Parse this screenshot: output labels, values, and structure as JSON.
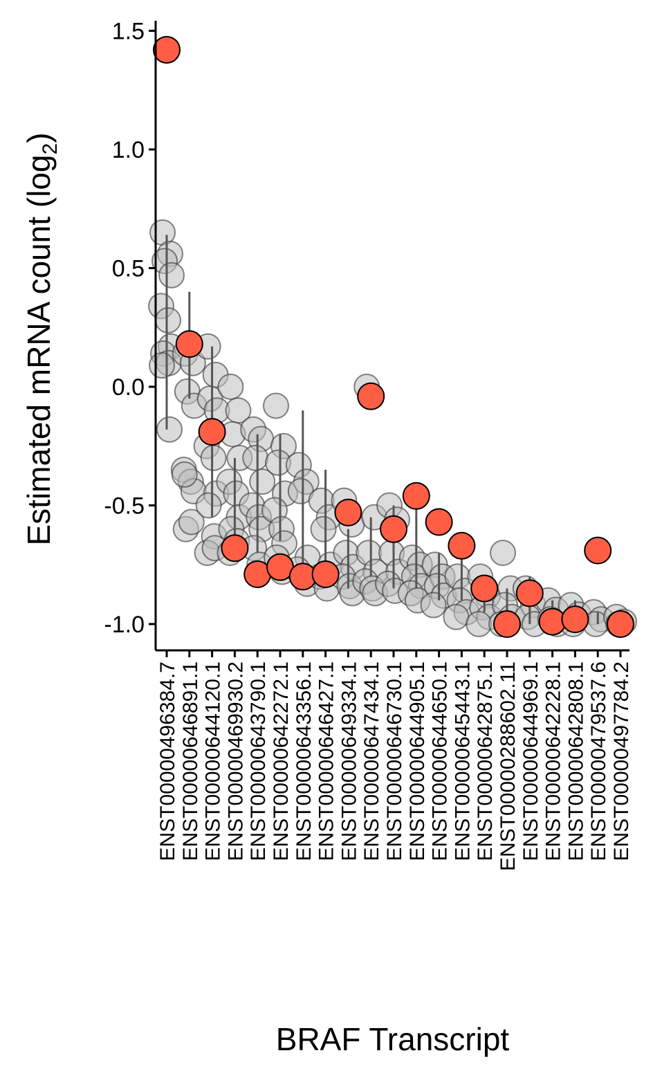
{
  "chart_data": {
    "type": "scatter",
    "title": "",
    "xlabel": "BRAF Transcript",
    "ylabel_main": "Estimated mRNA count (log",
    "ylabel_sub": "2",
    "ylabel_close": ")",
    "ylim": [
      -1.1,
      1.55
    ],
    "yticks": [
      1.5,
      1.0,
      0.5,
      0.0,
      -0.5,
      -1.0
    ],
    "ytick_labels": [
      "1.5",
      "1.0",
      "0.5",
      "0.0",
      "-0.5",
      "-1.0"
    ],
    "grid": false,
    "legend": "none",
    "categories": [
      "ENST00000496384.7",
      "ENST00000646891.1",
      "ENST00000644120.1",
      "ENST00000469930.2",
      "ENST00000643790.1",
      "ENST00000642272.1",
      "ENST00000643356.1",
      "ENST00000646427.1",
      "ENST00000649334.1",
      "ENST00000647434.1",
      "ENST00000646730.1",
      "ENST00000644905.1",
      "ENST00000644650.1",
      "ENST00000645443.1",
      "ENST00000642875.1",
      "ENST00000288602.11",
      "ENST00000644969.1",
      "ENST00000642228.1",
      "ENST00000642808.1",
      "ENST00000479537.6",
      "ENST00000497784.2"
    ],
    "colors": {
      "highlight_fill": "#FF5E45",
      "highlight_edge": "#000000",
      "background_fill": "#BDBDBD",
      "background_edge": "#333333",
      "errorbar": "#555555"
    },
    "highlight_series": [
      1.42,
      0.18,
      -0.19,
      -0.68,
      -0.79,
      -0.76,
      -0.8,
      -0.79,
      -0.53,
      -0.04,
      -0.6,
      -0.46,
      -0.57,
      -0.67,
      -0.85,
      -1.0,
      -0.87,
      -0.99,
      -0.98,
      -0.69,
      -1.0
    ],
    "errorbars": [
      {
        "category": 0,
        "low": -0.18,
        "high": 0.64
      },
      {
        "category": 1,
        "low": -0.05,
        "high": 0.4
      },
      {
        "category": 2,
        "low": -0.55,
        "high": 0.17
      },
      {
        "category": 3,
        "low": -0.7,
        "high": -0.3
      },
      {
        "category": 4,
        "low": -0.7,
        "high": -0.2
      },
      {
        "category": 5,
        "low": -0.65,
        "high": -0.2
      },
      {
        "category": 6,
        "low": -0.75,
        "high": -0.1
      },
      {
        "category": 7,
        "low": -0.8,
        "high": -0.35
      },
      {
        "category": 8,
        "low": -0.85,
        "high": -0.6
      },
      {
        "category": 9,
        "low": -0.8,
        "high": -0.55
      },
      {
        "category": 10,
        "low": -0.85,
        "high": -0.5
      },
      {
        "category": 11,
        "low": -0.85,
        "high": -0.45
      },
      {
        "category": 12,
        "low": -0.9,
        "high": -0.7
      },
      {
        "category": 13,
        "low": -0.9,
        "high": -0.7
      },
      {
        "category": 14,
        "low": -0.95,
        "high": -0.8
      },
      {
        "category": 15,
        "low": -1.0,
        "high": -0.85
      },
      {
        "category": 16,
        "low": -1.0,
        "high": -0.8
      },
      {
        "category": 17,
        "low": -1.0,
        "high": -0.9
      },
      {
        "category": 18,
        "low": -1.0,
        "high": -0.9
      },
      {
        "category": 19,
        "low": -1.0,
        "high": -0.95
      },
      {
        "category": 20,
        "low": -1.0,
        "high": -0.97
      }
    ],
    "background_points": [
      {
        "category": 0,
        "values": [
          0.65,
          0.56,
          0.53,
          0.47,
          0.34,
          0.28,
          0.17,
          0.14,
          0.1,
          0.09,
          -0.18
        ]
      },
      {
        "category": 1,
        "values": [
          0.14,
          0.1,
          -0.02,
          -0.08,
          -0.35,
          -0.4,
          -0.44,
          -0.6,
          -0.57,
          -0.37
        ]
      },
      {
        "category": 2,
        "values": [
          0.17,
          0.05,
          -0.05,
          -0.1,
          -0.25,
          -0.3,
          -0.45,
          -0.5,
          -0.63,
          -0.7,
          -0.68
        ]
      },
      {
        "category": 3,
        "values": [
          0.0,
          -0.1,
          -0.2,
          -0.3,
          -0.4,
          -0.45,
          -0.55,
          -0.6,
          -0.65,
          -0.7
        ]
      },
      {
        "category": 4,
        "values": [
          -0.18,
          -0.22,
          -0.3,
          -0.4,
          -0.5,
          -0.55,
          -0.6,
          -0.68,
          -0.75
        ]
      },
      {
        "category": 5,
        "values": [
          -0.08,
          -0.25,
          -0.32,
          -0.45,
          -0.52,
          -0.6,
          -0.66,
          -0.72,
          -0.78
        ]
      },
      {
        "category": 6,
        "values": [
          -0.33,
          -0.4,
          -0.44,
          -0.72,
          -0.77,
          -0.8,
          -0.83
        ]
      },
      {
        "category": 7,
        "values": [
          -0.48,
          -0.55,
          -0.6,
          -0.75,
          -0.8,
          -0.85
        ]
      },
      {
        "category": 8,
        "values": [
          -0.48,
          -0.58,
          -0.7,
          -0.76,
          -0.8,
          -0.84,
          -0.87
        ]
      },
      {
        "category": 9,
        "values": [
          0.0,
          -0.55,
          -0.7,
          -0.78,
          -0.82,
          -0.85,
          -0.87
        ]
      },
      {
        "category": 10,
        "values": [
          -0.5,
          -0.56,
          -0.7,
          -0.78,
          -0.83,
          -0.86
        ]
      },
      {
        "category": 11,
        "values": [
          -0.72,
          -0.75,
          -0.8,
          -0.84,
          -0.87,
          -0.9
        ]
      },
      {
        "category": 12,
        "values": [
          -0.75,
          -0.8,
          -0.84,
          -0.88,
          -0.92
        ]
      },
      {
        "category": 13,
        "values": [
          -0.8,
          -0.86,
          -0.9,
          -0.95,
          -0.97
        ]
      },
      {
        "category": 14,
        "values": [
          -0.8,
          -0.88,
          -0.93,
          -0.97,
          -1.0
        ]
      },
      {
        "category": 15,
        "values": [
          -0.7,
          -0.85,
          -0.92,
          -0.97,
          -1.0
        ]
      },
      {
        "category": 16,
        "values": [
          -0.85,
          -0.92,
          -0.97,
          -1.0
        ]
      },
      {
        "category": 17,
        "values": [
          -0.9,
          -0.94,
          -0.98,
          -1.0
        ]
      },
      {
        "category": 18,
        "values": [
          -0.92,
          -0.96,
          -1.0
        ]
      },
      {
        "category": 19,
        "values": [
          -0.95,
          -0.98,
          -1.0
        ]
      },
      {
        "category": 20,
        "values": [
          -0.97,
          -0.99,
          -1.0
        ]
      }
    ]
  }
}
